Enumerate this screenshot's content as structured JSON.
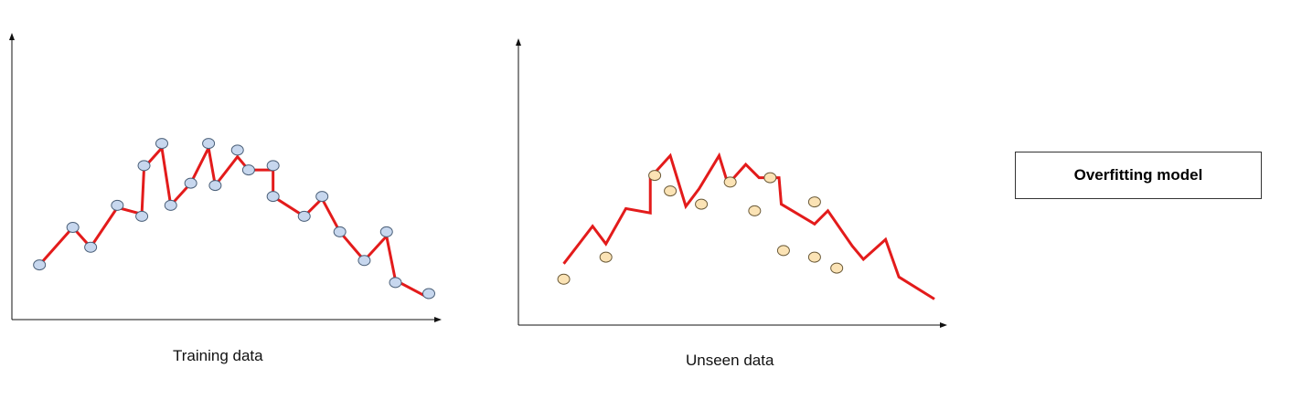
{
  "captions": {
    "left": "Training data",
    "right": "Unseen data"
  },
  "legend": {
    "label": "Overfitting model"
  },
  "colors": {
    "axis": "#111111",
    "model_line": "#e31b1b",
    "training_point_fill": "#c7d7ee",
    "training_point_stroke": "#4a5f78",
    "unseen_point_fill": "#fbe3b5",
    "unseen_point_stroke": "#6b5a38"
  },
  "chart_data": [
    {
      "type": "scatter",
      "title": "",
      "xlabel": "Training data",
      "ylabel": "",
      "series": [
        {
          "kind": "points",
          "values": [
            [
              0.5,
              1.9
            ],
            [
              2.0,
              3.6
            ],
            [
              2.8,
              2.7
            ],
            [
              4.0,
              4.6
            ],
            [
              5.1,
              4.1
            ],
            [
              5.2,
              6.4
            ],
            [
              6.0,
              7.4
            ],
            [
              6.4,
              4.6
            ],
            [
              7.3,
              5.6
            ],
            [
              8.1,
              7.4
            ],
            [
              8.4,
              5.5
            ],
            [
              9.4,
              7.1
            ],
            [
              9.9,
              6.2
            ],
            [
              11.0,
              6.4
            ],
            [
              11.0,
              5.0
            ],
            [
              12.4,
              4.1
            ],
            [
              13.2,
              5.0
            ],
            [
              14.0,
              3.4
            ],
            [
              15.1,
              2.1
            ],
            [
              16.1,
              3.4
            ],
            [
              16.5,
              1.1
            ],
            [
              18.0,
              0.6
            ]
          ]
        },
        {
          "kind": "line",
          "values": [
            [
              0.5,
              1.9
            ],
            [
              2.0,
              3.6
            ],
            [
              2.8,
              2.7
            ],
            [
              4.0,
              4.5
            ],
            [
              5.1,
              4.2
            ],
            [
              5.2,
              6.3
            ],
            [
              6.0,
              7.2
            ],
            [
              6.4,
              4.6
            ],
            [
              7.3,
              5.6
            ],
            [
              8.1,
              7.2
            ],
            [
              8.4,
              5.5
            ],
            [
              9.4,
              6.8
            ],
            [
              9.9,
              6.2
            ],
            [
              11.0,
              6.2
            ],
            [
              11.0,
              5.0
            ],
            [
              12.4,
              4.1
            ],
            [
              13.2,
              4.9
            ],
            [
              14.0,
              3.4
            ],
            [
              15.1,
              2.1
            ],
            [
              16.1,
              3.2
            ],
            [
              16.5,
              1.2
            ],
            [
              18.0,
              0.4
            ]
          ]
        }
      ]
    },
    {
      "type": "scatter",
      "title": "",
      "xlabel": "Unseen data",
      "ylabel": "",
      "series": [
        {
          "kind": "points",
          "values": [
            [
              1.3,
              1.5
            ],
            [
              3.2,
              2.5
            ],
            [
              5.4,
              6.2
            ],
            [
              6.1,
              5.5
            ],
            [
              7.5,
              4.9
            ],
            [
              8.8,
              5.9
            ],
            [
              9.9,
              4.6
            ],
            [
              10.6,
              6.1
            ],
            [
              11.2,
              2.8
            ],
            [
              12.6,
              2.5
            ],
            [
              12.6,
              5.0
            ],
            [
              13.6,
              2.0
            ]
          ]
        },
        {
          "kind": "line",
          "values": [
            [
              1.3,
              2.2
            ],
            [
              2.6,
              3.9
            ],
            [
              3.2,
              3.1
            ],
            [
              4.1,
              4.7
            ],
            [
              5.2,
              4.5
            ],
            [
              5.2,
              6.1
            ],
            [
              6.1,
              7.1
            ],
            [
              6.8,
              4.8
            ],
            [
              7.4,
              5.6
            ],
            [
              8.3,
              7.1
            ],
            [
              8.7,
              5.8
            ],
            [
              9.5,
              6.7
            ],
            [
              10.1,
              6.1
            ],
            [
              11.0,
              6.1
            ],
            [
              11.1,
              4.9
            ],
            [
              12.6,
              4.0
            ],
            [
              13.2,
              4.6
            ],
            [
              14.3,
              3.0
            ],
            [
              14.8,
              2.4
            ],
            [
              15.8,
              3.3
            ],
            [
              16.4,
              1.6
            ],
            [
              18.0,
              0.6
            ]
          ]
        }
      ]
    }
  ]
}
